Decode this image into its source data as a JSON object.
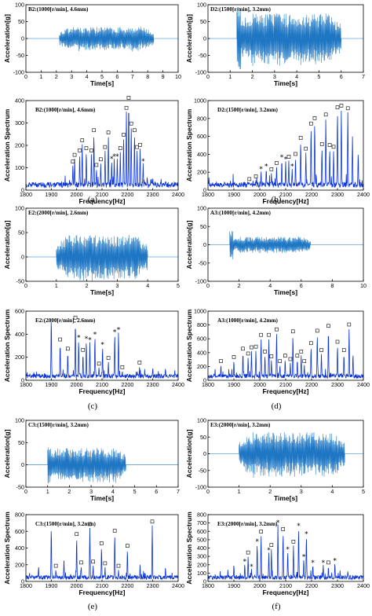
{
  "captions": [
    "(a)",
    "(b)",
    "(c)",
    "(d)",
    "(e)",
    "(f)"
  ],
  "chart_data": [
    {
      "id": "B2-time",
      "type": "line",
      "title": "B2:(1000[r/min], 4.6mm)",
      "xlabel": "Time[s]",
      "ylabel": "Acceleration[g]",
      "xlim": [
        0,
        10
      ],
      "ylim": [
        -100,
        100
      ],
      "xticks": [
        "0",
        "1",
        "2",
        "3",
        "4",
        "5",
        "6",
        "7",
        "8",
        "9",
        "10"
      ],
      "yticks": [
        "-100",
        "-50",
        "0",
        "50",
        "100"
      ],
      "signal": {
        "start": 2.2,
        "end": 8.4,
        "peak_amplitude": 35,
        "onset_spike": 0
      }
    },
    {
      "id": "D2-time",
      "type": "line",
      "title": "D2:(1500[r/min], 3.2mm)",
      "xlabel": "Time[s]",
      "ylabel": "Acceleration[g]",
      "xlim": [
        0,
        7
      ],
      "ylim": [
        -100,
        100
      ],
      "xticks": [
        "0",
        "1",
        "2",
        "3",
        "4",
        "5",
        "6",
        "7"
      ],
      "yticks": [
        "-100",
        "-50",
        "0",
        "50",
        "100"
      ],
      "signal": {
        "start": 1.3,
        "end": 6.0,
        "peak_amplitude": 75,
        "onset_spike": 95
      }
    },
    {
      "id": "B2-spectrum",
      "type": "line",
      "title": "B2:(1000[r/min], 4.6mm)",
      "xlabel": "Frequency[Hz]",
      "ylabel": "Acceleration Spectrum",
      "xlim": [
        1800,
        2400
      ],
      "ylim": [
        0,
        400
      ],
      "xticks": [
        "1800",
        "1900",
        "2000",
        "2100",
        "2200",
        "2300",
        "2400"
      ],
      "yticks": [
        "0",
        "100",
        "200",
        "300",
        "400"
      ],
      "peaks": [
        {
          "x": 1985,
          "y": 110,
          "m": "o"
        },
        {
          "x": 1992,
          "y": 140,
          "m": "o"
        },
        {
          "x": 2012,
          "y": 160,
          "m": "o"
        },
        {
          "x": 2022,
          "y": 205,
          "m": "o"
        },
        {
          "x": 2038,
          "y": 170,
          "m": "o"
        },
        {
          "x": 2058,
          "y": 160,
          "m": "o"
        },
        {
          "x": 2068,
          "y": 250,
          "m": "o"
        },
        {
          "x": 2078,
          "y": 95,
          "m": "o"
        },
        {
          "x": 2095,
          "y": 120,
          "m": "o"
        },
        {
          "x": 2112,
          "y": 175,
          "m": "o"
        },
        {
          "x": 2125,
          "y": 240,
          "m": "o"
        },
        {
          "x": 2138,
          "y": 130,
          "m": "*"
        },
        {
          "x": 2148,
          "y": 140,
          "m": "*"
        },
        {
          "x": 2160,
          "y": 140,
          "m": "*"
        },
        {
          "x": 2172,
          "y": 170,
          "m": "o"
        },
        {
          "x": 2185,
          "y": 230,
          "m": "o"
        },
        {
          "x": 2196,
          "y": 350,
          "m": "o"
        },
        {
          "x": 2205,
          "y": 395,
          "m": "o"
        },
        {
          "x": 2215,
          "y": 280,
          "m": "o"
        },
        {
          "x": 2228,
          "y": 250,
          "m": "o"
        },
        {
          "x": 2238,
          "y": 175,
          "m": "o"
        },
        {
          "x": 2250,
          "y": 185,
          "m": "o"
        },
        {
          "x": 2262,
          "y": 120,
          "m": "*"
        },
        {
          "x": 2278,
          "y": 60,
          "m": ""
        },
        {
          "x": 2300,
          "y": 55,
          "m": ""
        }
      ]
    },
    {
      "id": "D2-spectrum",
      "type": "line",
      "title": "D2:(1500[r/min], 3.2mm)",
      "xlabel": "Frequency[Hz]",
      "ylabel": "Acceleration Spectrum",
      "xlim": [
        1800,
        2400
      ],
      "ylim": [
        0,
        1000
      ],
      "xticks": [
        "1800",
        "1900",
        "2000",
        "2100",
        "2200",
        "2300",
        "2400"
      ],
      "yticks": [
        "0",
        "200",
        "400",
        "600",
        "800",
        "1000"
      ],
      "peaks": [
        {
          "x": 1960,
          "y": 80,
          "m": "o"
        },
        {
          "x": 1985,
          "y": 110,
          "m": "o"
        },
        {
          "x": 2005,
          "y": 210,
          "m": "*"
        },
        {
          "x": 2025,
          "y": 240,
          "m": "*"
        },
        {
          "x": 2045,
          "y": 190,
          "m": "o"
        },
        {
          "x": 2065,
          "y": 260,
          "m": "o"
        },
        {
          "x": 2085,
          "y": 340,
          "m": "*"
        },
        {
          "x": 2100,
          "y": 320,
          "m": "*"
        },
        {
          "x": 2112,
          "y": 330,
          "m": "o"
        },
        {
          "x": 2125,
          "y": 240,
          "m": "*"
        },
        {
          "x": 2138,
          "y": 360,
          "m": "o"
        },
        {
          "x": 2158,
          "y": 540,
          "m": "o"
        },
        {
          "x": 2178,
          "y": 420,
          "m": "o"
        },
        {
          "x": 2198,
          "y": 700,
          "m": "o"
        },
        {
          "x": 2212,
          "y": 760,
          "m": "o"
        },
        {
          "x": 2240,
          "y": 470,
          "m": "o"
        },
        {
          "x": 2255,
          "y": 800,
          "m": "o"
        },
        {
          "x": 2270,
          "y": 460,
          "m": "o"
        },
        {
          "x": 2285,
          "y": 440,
          "m": "o"
        },
        {
          "x": 2300,
          "y": 880,
          "m": "o"
        },
        {
          "x": 2315,
          "y": 900,
          "m": "o"
        },
        {
          "x": 2340,
          "y": 870,
          "m": "o"
        },
        {
          "x": 2358,
          "y": 600,
          "m": ""
        },
        {
          "x": 2380,
          "y": 420,
          "m": ""
        }
      ]
    },
    {
      "id": "E2-time",
      "type": "line",
      "title": "E2:(2000[r/min], 2.6mm)",
      "xlabel": "Time[s]",
      "ylabel": "Acceleration[g]",
      "xlim": [
        0,
        5
      ],
      "ylim": [
        -50,
        100
      ],
      "xticks": [
        "0",
        "1",
        "2",
        "3",
        "4",
        "5"
      ],
      "yticks": [
        "-50",
        "0",
        "50",
        "100"
      ],
      "signal": {
        "start": 1.0,
        "end": 4.0,
        "peak_amplitude": 45,
        "onset_spike": 0
      }
    },
    {
      "id": "A3-time",
      "type": "line",
      "title": "A3:(1000[r/min], 4.2mm)",
      "xlabel": "Time[s]",
      "ylabel": "Acceleration[g]",
      "xlim": [
        0,
        10
      ],
      "ylim": [
        -100,
        100
      ],
      "xticks": [
        "0",
        "2",
        "4",
        "6",
        "8",
        "10"
      ],
      "yticks": [
        "-100",
        "-50",
        "0",
        "50",
        "100"
      ],
      "signal": {
        "start": 1.4,
        "end": 6.6,
        "peak_amplitude": 22,
        "onset_spike": 38
      }
    },
    {
      "id": "E2-spectrum",
      "type": "line",
      "title": "E2:(2000[r/min], 2.6mm)",
      "xlabel": "Frequency[Hz]",
      "ylabel": "Acceleration Spectrum",
      "xlim": [
        1800,
        2400
      ],
      "ylim": [
        0,
        600
      ],
      "xticks": [
        "1800",
        "1900",
        "2000",
        "2100",
        "2200",
        "2300",
        "2400"
      ],
      "yticks": [
        "0",
        "200",
        "400",
        "600"
      ],
      "peaks": [
        {
          "x": 1900,
          "y": 540,
          "m": ""
        },
        {
          "x": 1935,
          "y": 320,
          "m": "o"
        },
        {
          "x": 1965,
          "y": 240,
          "m": "o"
        },
        {
          "x": 1995,
          "y": 510,
          "m": "o"
        },
        {
          "x": 2008,
          "y": 350,
          "m": "*"
        },
        {
          "x": 2025,
          "y": 230,
          "m": "o"
        },
        {
          "x": 2038,
          "y": 340,
          "m": "*"
        },
        {
          "x": 2052,
          "y": 330,
          "m": "*"
        },
        {
          "x": 2072,
          "y": 380,
          "m": "*"
        },
        {
          "x": 2088,
          "y": 110,
          "m": "o"
        },
        {
          "x": 2102,
          "y": 290,
          "m": "*"
        },
        {
          "x": 2125,
          "y": 160,
          "m": "o"
        },
        {
          "x": 2150,
          "y": 400,
          "m": "*"
        },
        {
          "x": 2165,
          "y": 420,
          "m": "*"
        },
        {
          "x": 2180,
          "y": 80,
          "m": "o"
        },
        {
          "x": 2248,
          "y": 120,
          "m": "o"
        },
        {
          "x": 2300,
          "y": 110,
          "m": ""
        },
        {
          "x": 2350,
          "y": 105,
          "m": ""
        }
      ]
    },
    {
      "id": "A3-spectrum",
      "type": "line",
      "title": "A3:(1000[r/min], 4.2mm)",
      "xlabel": "Frequency[Hz]",
      "ylabel": "Acceleration Spectrum",
      "xlim": [
        1800,
        2400
      ],
      "ylim": [
        0,
        1000
      ],
      "xticks": [
        "1800",
        "1900",
        "2000",
        "2100",
        "2200",
        "2300",
        "2400"
      ],
      "yticks": [
        "0",
        "200",
        "400",
        "600",
        "800",
        "1000"
      ],
      "peaks": [
        {
          "x": 1850,
          "y": 220,
          "m": "o"
        },
        {
          "x": 1900,
          "y": 280,
          "m": "o"
        },
        {
          "x": 1935,
          "y": 400,
          "m": "o"
        },
        {
          "x": 1955,
          "y": 330,
          "m": "o"
        },
        {
          "x": 1968,
          "y": 420,
          "m": "o"
        },
        {
          "x": 1985,
          "y": 430,
          "m": "o"
        },
        {
          "x": 2005,
          "y": 600,
          "m": "o"
        },
        {
          "x": 2020,
          "y": 360,
          "m": "o"
        },
        {
          "x": 2035,
          "y": 600,
          "m": "o"
        },
        {
          "x": 2045,
          "y": 290,
          "m": "o"
        },
        {
          "x": 2065,
          "y": 680,
          "m": "o"
        },
        {
          "x": 2078,
          "y": 220,
          "m": "o"
        },
        {
          "x": 2098,
          "y": 300,
          "m": "o"
        },
        {
          "x": 2118,
          "y": 250,
          "m": "o"
        },
        {
          "x": 2128,
          "y": 650,
          "m": "o"
        },
        {
          "x": 2145,
          "y": 300,
          "m": "o"
        },
        {
          "x": 2160,
          "y": 360,
          "m": "o"
        },
        {
          "x": 2172,
          "y": 220,
          "m": "o"
        },
        {
          "x": 2198,
          "y": 480,
          "m": "o"
        },
        {
          "x": 2222,
          "y": 660,
          "m": "o"
        },
        {
          "x": 2238,
          "y": 380,
          "m": "o"
        },
        {
          "x": 2265,
          "y": 730,
          "m": "o"
        },
        {
          "x": 2300,
          "y": 500,
          "m": "o"
        },
        {
          "x": 2325,
          "y": 380,
          "m": "o"
        },
        {
          "x": 2345,
          "y": 750,
          "m": "o"
        },
        {
          "x": 2360,
          "y": 380,
          "m": ""
        }
      ]
    },
    {
      "id": "C3-time",
      "type": "line",
      "title": "C3:(1500[r/min], 3.2mm)",
      "xlabel": "Time[s]",
      "ylabel": "Acceleration[g]",
      "xlim": [
        0,
        7
      ],
      "ylim": [
        -50,
        100
      ],
      "xticks": [
        "0",
        "1",
        "2",
        "3",
        "4",
        "5",
        "6",
        "7"
      ],
      "yticks": [
        "-50",
        "0",
        "50",
        "100"
      ],
      "signal": {
        "start": 1.0,
        "end": 4.6,
        "peak_amplitude": 38,
        "onset_spike": 45
      }
    },
    {
      "id": "E3-time",
      "type": "line",
      "title": "E3:(2000[r/min], 3.2mm)",
      "xlabel": "Time[s]",
      "ylabel": "Acceleration[g]",
      "xlim": [
        0,
        5
      ],
      "ylim": [
        -100,
        100
      ],
      "xticks": [
        "0",
        "1",
        "2",
        "3",
        "4",
        "5"
      ],
      "yticks": [
        "-100",
        "-50",
        "0",
        "50",
        "100"
      ],
      "signal": {
        "start": 1.0,
        "end": 4.4,
        "peak_amplitude": 65,
        "onset_spike": 0
      }
    },
    {
      "id": "C3-spectrum",
      "type": "line",
      "title": "C3:(1500[r/min], 3.2mm)",
      "xlabel": "Frequency[Hz]",
      "ylabel": "Acceleration Spectrum",
      "xlim": [
        1800,
        2400
      ],
      "ylim": [
        0,
        800
      ],
      "xticks": [
        "1800",
        "1900",
        "2000",
        "2100",
        "2200",
        "2300",
        "2400"
      ],
      "yticks": [
        "0",
        "200",
        "400",
        "600",
        "800"
      ],
      "peaks": [
        {
          "x": 1850,
          "y": 180,
          "m": ""
        },
        {
          "x": 1900,
          "y": 640,
          "m": ""
        },
        {
          "x": 1918,
          "y": 140,
          "m": "o"
        },
        {
          "x": 1950,
          "y": 250,
          "m": ""
        },
        {
          "x": 2000,
          "y": 520,
          "m": "o"
        },
        {
          "x": 2018,
          "y": 180,
          "m": "o"
        },
        {
          "x": 2052,
          "y": 640,
          "m": "o"
        },
        {
          "x": 2065,
          "y": 190,
          "m": "o"
        },
        {
          "x": 2098,
          "y": 410,
          "m": "o"
        },
        {
          "x": 2112,
          "y": 170,
          "m": "o"
        },
        {
          "x": 2150,
          "y": 560,
          "m": "o"
        },
        {
          "x": 2165,
          "y": 140,
          "m": "o"
        },
        {
          "x": 2200,
          "y": 380,
          "m": "o"
        },
        {
          "x": 2250,
          "y": 200,
          "m": ""
        },
        {
          "x": 2298,
          "y": 670,
          "m": "o"
        },
        {
          "x": 2350,
          "y": 170,
          "m": ""
        }
      ]
    },
    {
      "id": "E3-spectrum",
      "type": "line",
      "title": "E3:(2000[r/min], 3.2mm)",
      "xlabel": "Frequency[Hz]",
      "ylabel": "Acceleration Spectrum",
      "xlim": [
        1800,
        2400
      ],
      "ylim": [
        0,
        800
      ],
      "xticks": [
        "1800",
        "1900",
        "2000",
        "2100",
        "2200",
        "2300",
        "2400"
      ],
      "yticks": [
        "0",
        "100",
        "200",
        "300",
        "400",
        "500",
        "600",
        "700",
        "800"
      ],
      "peaks": [
        {
          "x": 1900,
          "y": 200,
          "m": ""
        },
        {
          "x": 1942,
          "y": 210,
          "m": "*"
        },
        {
          "x": 1955,
          "y": 300,
          "m": "o"
        },
        {
          "x": 1968,
          "y": 150,
          "m": "*"
        },
        {
          "x": 1990,
          "y": 450,
          "m": "*"
        },
        {
          "x": 2005,
          "y": 550,
          "m": "o"
        },
        {
          "x": 2035,
          "y": 350,
          "m": "*"
        },
        {
          "x": 2045,
          "y": 390,
          "m": "o"
        },
        {
          "x": 2070,
          "y": 680,
          "m": "*"
        },
        {
          "x": 2090,
          "y": 580,
          "m": "o"
        },
        {
          "x": 2108,
          "y": 360,
          "m": "*"
        },
        {
          "x": 2130,
          "y": 430,
          "m": "o"
        },
        {
          "x": 2150,
          "y": 640,
          "m": "*"
        },
        {
          "x": 2170,
          "y": 270,
          "m": "*"
        },
        {
          "x": 2180,
          "y": 540,
          "m": "*"
        },
        {
          "x": 2205,
          "y": 200,
          "m": "*"
        },
        {
          "x": 2245,
          "y": 200,
          "m": "*"
        },
        {
          "x": 2265,
          "y": 180,
          "m": "o"
        },
        {
          "x": 2290,
          "y": 220,
          "m": "*"
        },
        {
          "x": 2310,
          "y": 130,
          "m": ""
        },
        {
          "x": 2340,
          "y": 120,
          "m": ""
        }
      ]
    }
  ]
}
